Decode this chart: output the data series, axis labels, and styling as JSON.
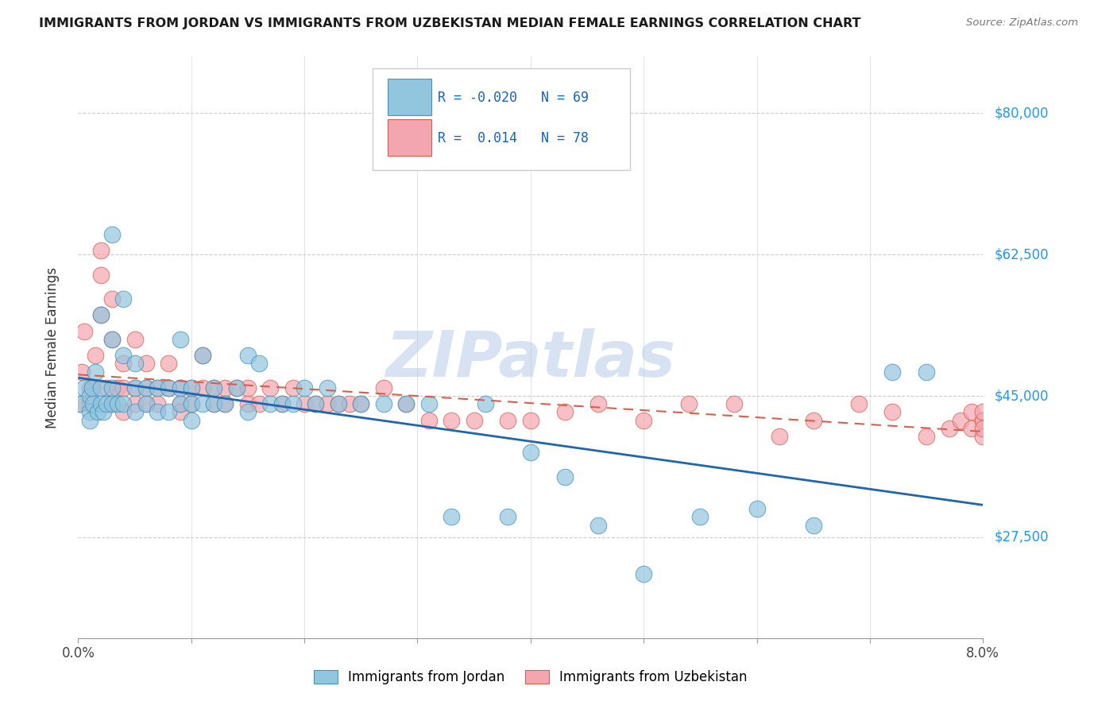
{
  "title": "IMMIGRANTS FROM JORDAN VS IMMIGRANTS FROM UZBEKISTAN MEDIAN FEMALE EARNINGS CORRELATION CHART",
  "source": "Source: ZipAtlas.com",
  "ylabel": "Median Female Earnings",
  "yticks": [
    27500,
    45000,
    62500,
    80000
  ],
  "ytick_labels": [
    "$27,500",
    "$45,000",
    "$62,500",
    "$80,000"
  ],
  "xmin": 0.0,
  "xmax": 0.08,
  "ymin": 15000,
  "ymax": 87000,
  "watermark": "ZIPatlas",
  "legend_R1": "-0.020",
  "legend_N1": "69",
  "legend_R2": " 0.014",
  "legend_N2": "78",
  "jordan_color": "#92c5de",
  "uzbekistan_color": "#f4a6b0",
  "jordan_edge_color": "#4393c3",
  "uzbekistan_edge_color": "#d6604d",
  "jordan_line_color": "#2166ac",
  "uzbekistan_line_color": "#d6604d",
  "jordan_scatter_x": [
    0.0002,
    0.0005,
    0.001,
    0.001,
    0.001,
    0.0012,
    0.0013,
    0.0015,
    0.0017,
    0.002,
    0.002,
    0.002,
    0.0022,
    0.0025,
    0.003,
    0.003,
    0.003,
    0.003,
    0.0035,
    0.004,
    0.004,
    0.004,
    0.005,
    0.005,
    0.005,
    0.006,
    0.006,
    0.007,
    0.007,
    0.008,
    0.008,
    0.009,
    0.009,
    0.009,
    0.01,
    0.01,
    0.01,
    0.011,
    0.011,
    0.012,
    0.012,
    0.013,
    0.014,
    0.015,
    0.015,
    0.016,
    0.017,
    0.018,
    0.019,
    0.02,
    0.021,
    0.022,
    0.023,
    0.025,
    0.027,
    0.029,
    0.031,
    0.033,
    0.036,
    0.038,
    0.04,
    0.043,
    0.046,
    0.05,
    0.055,
    0.06,
    0.065,
    0.072,
    0.075
  ],
  "jordan_scatter_y": [
    44000,
    46000,
    45000,
    43000,
    42000,
    46000,
    44000,
    48000,
    43000,
    55000,
    46000,
    44000,
    43000,
    44000,
    65000,
    52000,
    46000,
    44000,
    44000,
    57000,
    50000,
    44000,
    49000,
    46000,
    43000,
    46000,
    44000,
    46000,
    43000,
    46000,
    43000,
    52000,
    46000,
    44000,
    46000,
    44000,
    42000,
    50000,
    44000,
    46000,
    44000,
    44000,
    46000,
    50000,
    43000,
    49000,
    44000,
    44000,
    44000,
    46000,
    44000,
    46000,
    44000,
    44000,
    44000,
    44000,
    44000,
    30000,
    44000,
    30000,
    38000,
    35000,
    29000,
    23000,
    30000,
    31000,
    29000,
    48000,
    48000
  ],
  "uzbekistan_scatter_x": [
    0.0001,
    0.0003,
    0.0005,
    0.001,
    0.001,
    0.0012,
    0.0015,
    0.002,
    0.002,
    0.002,
    0.0025,
    0.003,
    0.003,
    0.003,
    0.0035,
    0.004,
    0.004,
    0.004,
    0.005,
    0.005,
    0.005,
    0.006,
    0.006,
    0.006,
    0.007,
    0.007,
    0.008,
    0.008,
    0.009,
    0.009,
    0.009,
    0.01,
    0.01,
    0.011,
    0.011,
    0.012,
    0.012,
    0.013,
    0.013,
    0.014,
    0.015,
    0.015,
    0.016,
    0.017,
    0.018,
    0.019,
    0.02,
    0.021,
    0.022,
    0.023,
    0.024,
    0.025,
    0.027,
    0.029,
    0.031,
    0.033,
    0.035,
    0.038,
    0.04,
    0.043,
    0.046,
    0.05,
    0.054,
    0.058,
    0.062,
    0.065,
    0.069,
    0.072,
    0.075,
    0.077,
    0.078,
    0.079,
    0.079,
    0.08,
    0.08,
    0.08,
    0.08,
    0.08
  ],
  "uzbekistan_scatter_y": [
    44000,
    48000,
    53000,
    46000,
    44000,
    46000,
    50000,
    63000,
    60000,
    55000,
    46000,
    57000,
    52000,
    44000,
    46000,
    49000,
    46000,
    43000,
    52000,
    46000,
    44000,
    49000,
    46000,
    44000,
    46000,
    44000,
    49000,
    46000,
    44000,
    46000,
    43000,
    46000,
    44000,
    46000,
    50000,
    46000,
    44000,
    46000,
    44000,
    46000,
    44000,
    46000,
    44000,
    46000,
    44000,
    46000,
    44000,
    44000,
    44000,
    44000,
    44000,
    44000,
    46000,
    44000,
    42000,
    42000,
    42000,
    42000,
    42000,
    43000,
    44000,
    42000,
    44000,
    44000,
    40000,
    42000,
    44000,
    43000,
    40000,
    41000,
    42000,
    43000,
    41000,
    42000,
    40000,
    42000,
    43000,
    41000
  ]
}
